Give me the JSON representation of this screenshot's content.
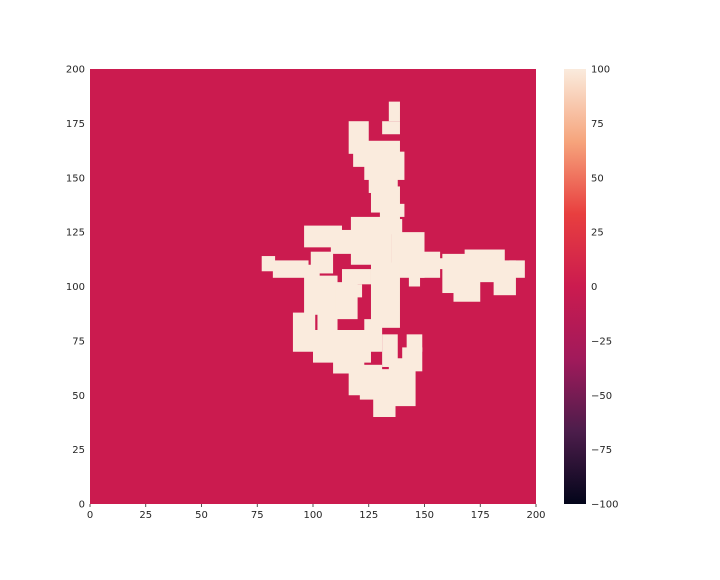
{
  "chart_data": {
    "type": "heatmap",
    "title": "",
    "xlabel": "",
    "ylabel": "",
    "xlim": [
      0,
      200
    ],
    "ylim": [
      0,
      200
    ],
    "x_ticks": [
      0,
      25,
      50,
      75,
      100,
      125,
      150,
      175,
      200
    ],
    "y_ticks": [
      0,
      25,
      50,
      75,
      100,
      125,
      150,
      175,
      200
    ],
    "grid": false,
    "colorbar": {
      "range": [
        -100,
        100
      ],
      "ticks": [
        100,
        75,
        50,
        25,
        0,
        -25,
        -50,
        -75,
        -100
      ],
      "tick_labels": [
        "100",
        "75",
        "50",
        "25",
        "0",
        "−25",
        "−50",
        "−75",
        "−100"
      ],
      "colors": [
        "#03051a",
        "#4c1d4b",
        "#a11a5b",
        "#cb1b4f",
        "#e83f3f",
        "#f6a47c",
        "#faebdd"
      ]
    },
    "background_value": 0,
    "cluster_value": 100,
    "background_color": "#cb1b4f",
    "cluster_color": "#faebdd",
    "cluster_rects": [
      [
        134,
        176,
        139,
        185
      ],
      [
        131,
        170,
        139,
        176
      ],
      [
        116,
        161,
        125,
        176
      ],
      [
        118,
        155,
        139,
        167
      ],
      [
        123,
        149,
        141,
        162
      ],
      [
        125,
        143,
        138,
        158
      ],
      [
        126,
        134,
        139,
        146
      ],
      [
        130,
        130,
        139,
        136
      ],
      [
        123,
        124,
        140,
        131
      ],
      [
        96,
        118,
        113,
        128
      ],
      [
        108,
        115,
        122,
        126
      ],
      [
        117,
        110,
        135,
        132
      ],
      [
        135,
        104,
        150,
        125
      ],
      [
        77,
        107,
        83,
        114
      ],
      [
        82,
        104,
        98,
        112
      ],
      [
        99,
        106,
        109,
        116
      ],
      [
        148,
        104,
        157,
        116
      ],
      [
        155,
        108,
        160,
        113
      ],
      [
        158,
        97,
        169,
        115
      ],
      [
        163,
        93,
        175,
        113
      ],
      [
        168,
        102,
        186,
        117
      ],
      [
        181,
        96,
        191,
        112
      ],
      [
        188,
        104,
        195,
        112
      ],
      [
        96,
        87,
        103,
        110
      ],
      [
        102,
        77,
        111,
        105
      ],
      [
        110,
        85,
        120,
        102
      ],
      [
        113,
        101,
        126,
        108
      ],
      [
        126,
        81,
        139,
        111
      ],
      [
        91,
        70,
        101,
        88
      ],
      [
        100,
        65,
        126,
        80
      ],
      [
        123,
        70,
        131,
        85
      ],
      [
        109,
        60,
        123,
        71
      ],
      [
        127,
        40,
        137,
        62
      ],
      [
        121,
        48,
        131,
        64
      ],
      [
        116,
        50,
        123,
        63
      ],
      [
        134,
        45,
        146,
        67
      ],
      [
        140,
        61,
        149,
        72
      ],
      [
        131,
        63,
        138,
        78
      ],
      [
        142,
        70,
        149,
        78
      ],
      [
        115,
        95,
        122,
        101
      ],
      [
        111,
        116,
        117,
        120
      ],
      [
        143,
        100,
        148,
        106
      ],
      [
        176,
        110,
        182,
        113
      ],
      [
        136,
        132,
        141,
        138
      ]
    ]
  }
}
